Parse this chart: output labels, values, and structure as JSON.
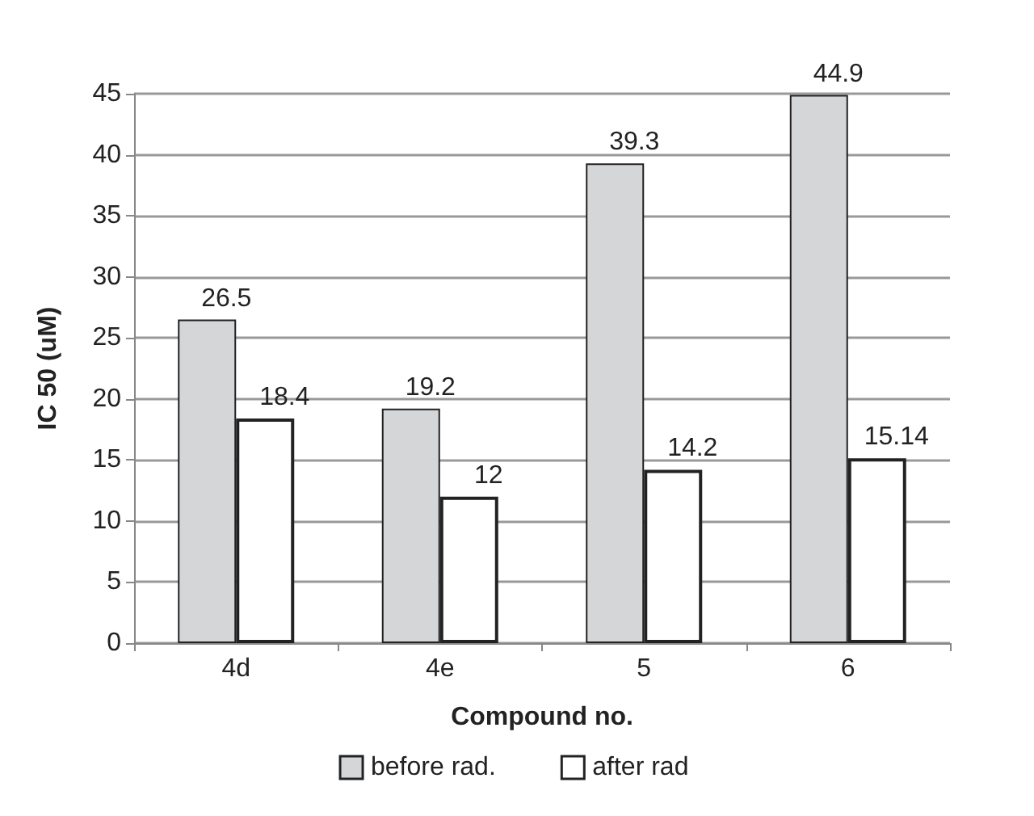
{
  "chart_data": {
    "type": "bar",
    "xlabel": "Compound no.",
    "ylabel": "IC 50 (uM)",
    "categories": [
      "4d",
      "4e",
      "5",
      "6"
    ],
    "series": [
      {
        "name": "before rad.",
        "color": "#d4d6d8",
        "values": [
          26.5,
          19.2,
          39.3,
          44.9
        ]
      },
      {
        "name": "after rad",
        "color": "#ffffff",
        "values": [
          18.4,
          12,
          14.2,
          15.14
        ]
      }
    ],
    "ylim": [
      0,
      45
    ],
    "yticks": [
      0,
      5,
      10,
      15,
      20,
      25,
      30,
      35,
      40,
      45
    ],
    "grid": "y",
    "legend": "bottom",
    "data_labels": true
  }
}
